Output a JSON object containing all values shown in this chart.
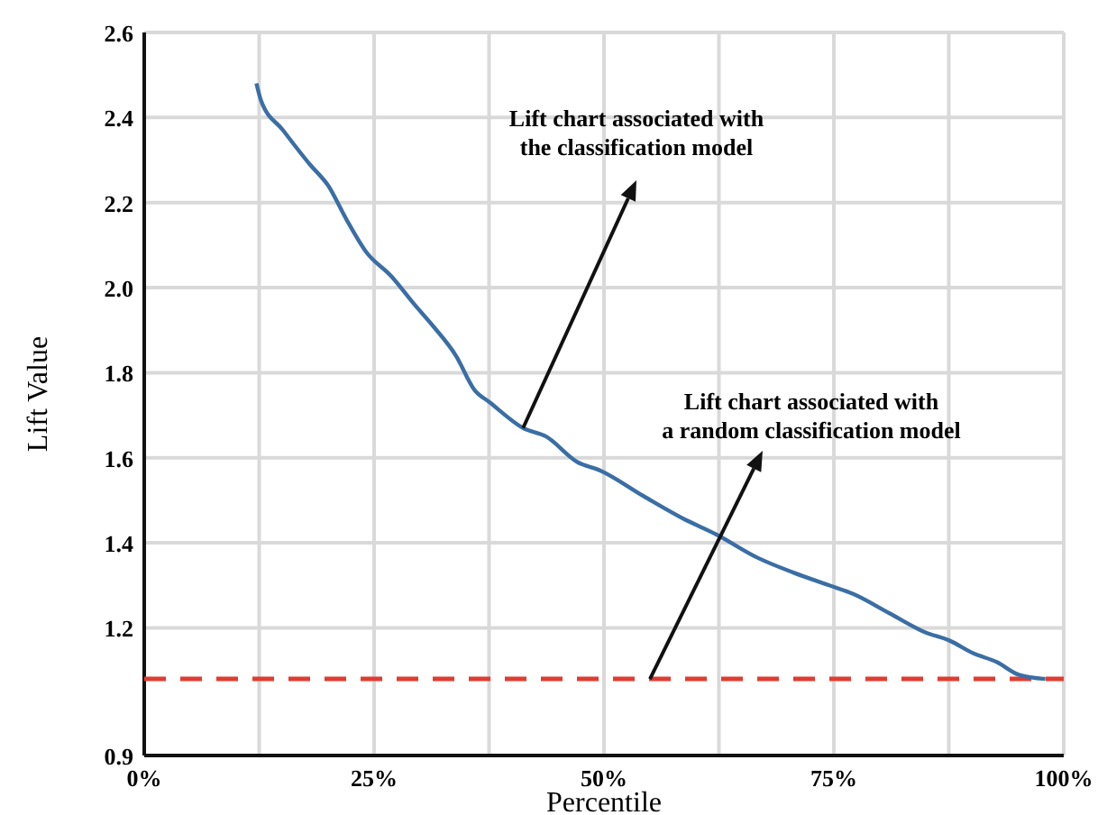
{
  "chart_data": {
    "type": "line",
    "xlabel": "Percentile",
    "ylabel": "Lift Value",
    "xlim": [
      0,
      100
    ],
    "xticks": [
      {
        "value": 0,
        "label": "0%"
      },
      {
        "value": 12.5,
        "label": null
      },
      {
        "value": 25,
        "label": "25%"
      },
      {
        "value": 37.5,
        "label": null
      },
      {
        "value": 50,
        "label": "50%"
      },
      {
        "value": 62.5,
        "label": null
      },
      {
        "value": 75,
        "label": "75%"
      },
      {
        "value": 87.5,
        "label": null
      },
      {
        "value": 100,
        "label": "100%"
      }
    ],
    "ylim": [
      0.9,
      2.6
    ],
    "yticks": [
      0.9,
      1.2,
      1.4,
      1.6,
      1.8,
      {
        "value": 2,
        "label": "2.0"
      },
      2.2,
      2.4,
      2.6
    ],
    "grid": true,
    "marker": "none",
    "line_style": "solid",
    "series": [
      {
        "color": "#3a6ea5",
        "x": [
          12.2,
          12.7,
          15.1,
          18.0,
          20,
          22,
          24.1,
          26.9,
          29.4,
          31.4,
          33.9,
          35.9,
          37.6,
          41.2,
          43.7,
          47.1,
          49.6,
          54.3,
          58.8,
          62.2,
          66.7,
          70.6,
          74.5,
          77.1,
          81,
          84.9,
          87.6,
          90.2,
          92.7,
          95.1,
          98
        ],
        "values": [
          2.48,
          2.44,
          2.37,
          2.29,
          2.24,
          2.16,
          2.085,
          2.026,
          1.96,
          1.91,
          1.84,
          1.76,
          1.73,
          1.67,
          1.65,
          1.59,
          1.57,
          1.51,
          1.455,
          1.42,
          1.365,
          1.33,
          1.3,
          1.28,
          1.235,
          1.19,
          1.17,
          1.14,
          1.12,
          1.09,
          1.08
        ]
      }
    ],
    "ref_lines": [
      {
        "axis": "y",
        "value": 1.08,
        "color": "#e03c31",
        "line_style": "dashed"
      }
    ],
    "annotations": [
      "Lift chart associated with\nthe classification model",
      {
        "text": "Lift chart associated with\na random classification model",
        "x": 55,
        "y": 1.08
      }
    ]
  }
}
